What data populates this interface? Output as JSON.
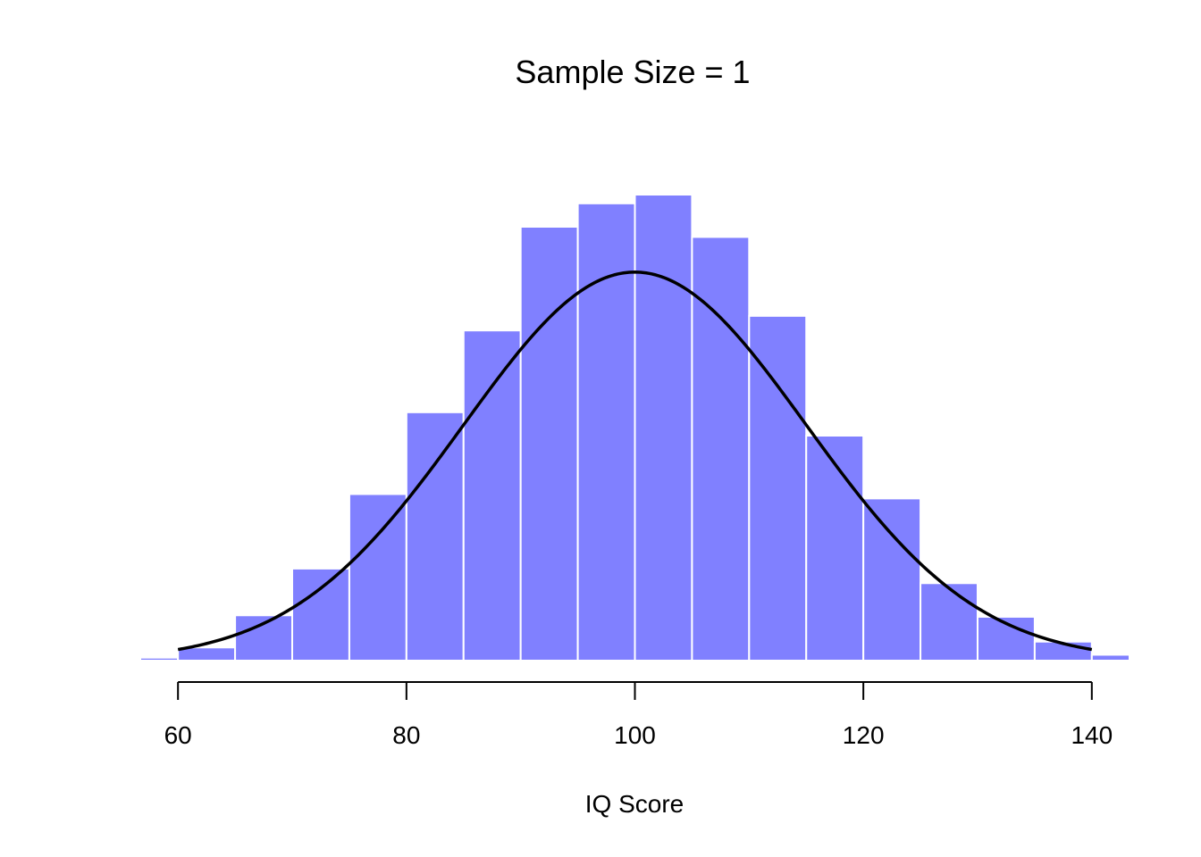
{
  "chart_data": {
    "type": "bar",
    "title": "Sample Size = 1",
    "xlabel": "IQ Score",
    "ylabel": "",
    "xlim": [
      56.7,
      143.3
    ],
    "ylim": [
      0,
      0.033
    ],
    "bin_width": 5,
    "bins": [
      {
        "x0": 55,
        "x1": 60,
        "density": 0.0002
      },
      {
        "x0": 60,
        "x1": 65,
        "density": 0.0009
      },
      {
        "x0": 65,
        "x1": 70,
        "density": 0.0031
      },
      {
        "x0": 70,
        "x1": 75,
        "density": 0.0063
      },
      {
        "x0": 75,
        "x1": 80,
        "density": 0.0114
      },
      {
        "x0": 80,
        "x1": 85,
        "density": 0.017
      },
      {
        "x0": 85,
        "x1": 90,
        "density": 0.0226
      },
      {
        "x0": 90,
        "x1": 95,
        "density": 0.0297
      },
      {
        "x0": 95,
        "x1": 100,
        "density": 0.0313
      },
      {
        "x0": 100,
        "x1": 105,
        "density": 0.0319
      },
      {
        "x0": 105,
        "x1": 110,
        "density": 0.029
      },
      {
        "x0": 110,
        "x1": 115,
        "density": 0.0236
      },
      {
        "x0": 115,
        "x1": 120,
        "density": 0.0154
      },
      {
        "x0": 120,
        "x1": 125,
        "density": 0.0111
      },
      {
        "x0": 125,
        "x1": 130,
        "density": 0.0053
      },
      {
        "x0": 130,
        "x1": 135,
        "density": 0.003
      },
      {
        "x0": 135,
        "x1": 140,
        "density": 0.0013
      },
      {
        "x0": 140,
        "x1": 145,
        "density": 0.0004
      }
    ],
    "curve": {
      "type": "normal",
      "mean": 100,
      "sd": 15,
      "x_range": [
        60,
        140
      ]
    },
    "x_ticks": [
      60,
      80,
      100,
      120,
      140
    ],
    "x_tick_labels": [
      "60",
      "80",
      "100",
      "120",
      "140"
    ],
    "colors": {
      "bar_fill": "#8080ff",
      "bar_border": "#ffffff",
      "curve": "#000000",
      "axis": "#000000"
    },
    "grid": false,
    "legend": "none"
  }
}
